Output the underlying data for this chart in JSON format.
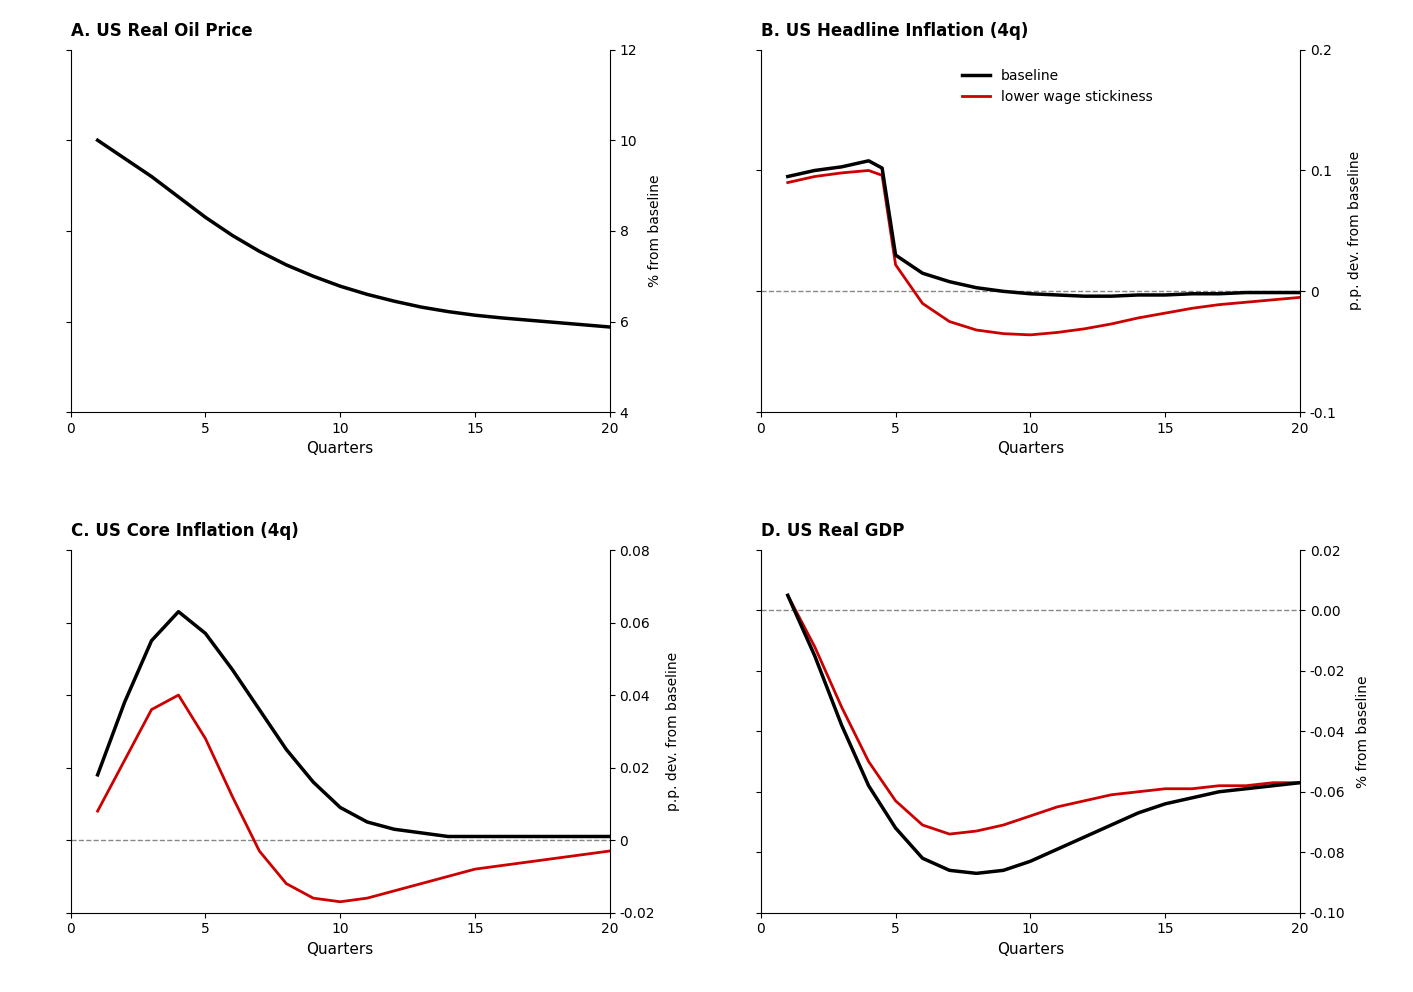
{
  "panel_A": {
    "title": "A. US Real Oil Price",
    "ylabel_right": "% from baseline",
    "xlabel": "Quarters",
    "xlim": [
      0,
      20
    ],
    "ylim": [
      4,
      12
    ],
    "yticks": [
      4,
      6,
      8,
      10,
      12
    ],
    "xticks": [
      0,
      5,
      10,
      15,
      20
    ],
    "baseline_x": [
      1,
      2,
      3,
      4,
      5,
      6,
      7,
      8,
      9,
      10,
      11,
      12,
      13,
      14,
      15,
      16,
      17,
      18,
      19,
      20
    ],
    "baseline_y": [
      10.0,
      9.6,
      9.2,
      8.75,
      8.3,
      7.9,
      7.55,
      7.25,
      7.0,
      6.78,
      6.6,
      6.45,
      6.32,
      6.22,
      6.14,
      6.08,
      6.03,
      5.98,
      5.93,
      5.88
    ]
  },
  "panel_B": {
    "title": "B. US Headline Inflation (4q)",
    "ylabel_right": "p.p. dev. from baseline",
    "xlabel": "Quarters",
    "xlim": [
      0,
      20
    ],
    "ylim": [
      -0.1,
      0.2
    ],
    "yticks": [
      -0.1,
      0.0,
      0.1,
      0.2
    ],
    "xticks": [
      0,
      5,
      10,
      15,
      20
    ],
    "legend_labels": [
      "baseline",
      "lower wage stickiness"
    ],
    "baseline_x": [
      1,
      2,
      3,
      4,
      4.5,
      5,
      6,
      7,
      8,
      9,
      10,
      11,
      12,
      13,
      14,
      15,
      16,
      17,
      18,
      19,
      20
    ],
    "baseline_y": [
      0.095,
      0.1,
      0.103,
      0.108,
      0.102,
      0.03,
      0.015,
      0.008,
      0.003,
      0.0,
      -0.002,
      -0.003,
      -0.004,
      -0.004,
      -0.003,
      -0.003,
      -0.002,
      -0.002,
      -0.001,
      -0.001,
      -0.001
    ],
    "lower_x": [
      1,
      2,
      3,
      4,
      4.5,
      5,
      6,
      7,
      8,
      9,
      10,
      11,
      12,
      13,
      14,
      15,
      16,
      17,
      18,
      19,
      20
    ],
    "lower_y": [
      0.09,
      0.095,
      0.098,
      0.1,
      0.096,
      0.022,
      -0.01,
      -0.025,
      -0.032,
      -0.035,
      -0.036,
      -0.034,
      -0.031,
      -0.027,
      -0.022,
      -0.018,
      -0.014,
      -0.011,
      -0.009,
      -0.007,
      -0.005
    ]
  },
  "panel_C": {
    "title": "C. US Core Inflation (4q)",
    "ylabel_right": "p.p. dev. from baseline",
    "xlabel": "Quarters",
    "xlim": [
      0,
      20
    ],
    "ylim": [
      -0.02,
      0.08
    ],
    "yticks": [
      -0.02,
      0.0,
      0.02,
      0.04,
      0.06,
      0.08
    ],
    "xticks": [
      0,
      5,
      10,
      15,
      20
    ],
    "baseline_x": [
      1,
      2,
      3,
      4,
      5,
      6,
      7,
      8,
      9,
      10,
      11,
      12,
      13,
      14,
      15,
      16,
      17,
      18,
      19,
      20
    ],
    "baseline_y": [
      0.018,
      0.038,
      0.055,
      0.063,
      0.057,
      0.047,
      0.036,
      0.025,
      0.016,
      0.009,
      0.005,
      0.003,
      0.002,
      0.001,
      0.001,
      0.001,
      0.001,
      0.001,
      0.001,
      0.001
    ],
    "lower_x": [
      1,
      2,
      3,
      4,
      5,
      6,
      7,
      8,
      9,
      10,
      11,
      12,
      13,
      14,
      15,
      16,
      17,
      18,
      19,
      20
    ],
    "lower_y": [
      0.008,
      0.022,
      0.036,
      0.04,
      0.028,
      0.012,
      -0.003,
      -0.012,
      -0.016,
      -0.017,
      -0.016,
      -0.014,
      -0.012,
      -0.01,
      -0.008,
      -0.007,
      -0.006,
      -0.005,
      -0.004,
      -0.003
    ]
  },
  "panel_D": {
    "title": "D. US Real GDP",
    "ylabel_right": "% from baseline",
    "xlabel": "Quarters",
    "xlim": [
      0,
      20
    ],
    "ylim": [
      -0.1,
      0.02
    ],
    "yticks": [
      -0.1,
      -0.08,
      -0.06,
      -0.04,
      -0.02,
      0.0,
      0.02
    ],
    "xticks": [
      0,
      5,
      10,
      15,
      20
    ],
    "baseline_x": [
      1,
      2,
      3,
      4,
      5,
      6,
      7,
      8,
      9,
      10,
      11,
      12,
      13,
      14,
      15,
      16,
      17,
      18,
      19,
      20
    ],
    "baseline_y": [
      0.005,
      -0.015,
      -0.038,
      -0.058,
      -0.072,
      -0.082,
      -0.086,
      -0.087,
      -0.086,
      -0.083,
      -0.079,
      -0.075,
      -0.071,
      -0.067,
      -0.064,
      -0.062,
      -0.06,
      -0.059,
      -0.058,
      -0.057
    ],
    "lower_x": [
      1,
      2,
      3,
      4,
      5,
      6,
      7,
      8,
      9,
      10,
      11,
      12,
      13,
      14,
      15,
      16,
      17,
      18,
      19,
      20
    ],
    "lower_y": [
      0.005,
      -0.012,
      -0.032,
      -0.05,
      -0.063,
      -0.071,
      -0.074,
      -0.073,
      -0.071,
      -0.068,
      -0.065,
      -0.063,
      -0.061,
      -0.06,
      -0.059,
      -0.059,
      -0.058,
      -0.058,
      -0.057,
      -0.057
    ]
  },
  "colors": {
    "baseline": "#000000",
    "lower": "#cc0000",
    "dashed": "#888888"
  },
  "line_width": 2.0,
  "background_color": "#ffffff"
}
